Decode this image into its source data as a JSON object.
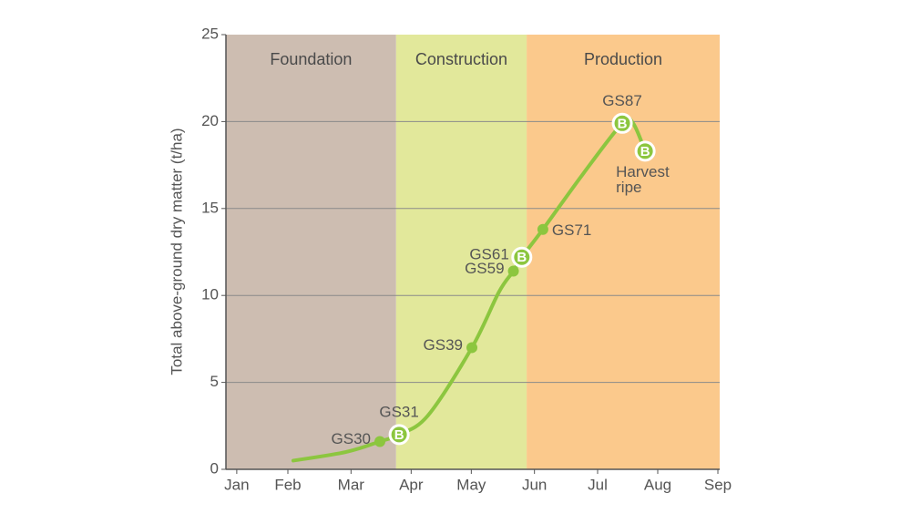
{
  "chart_data": {
    "type": "line",
    "ylabel": "Total above-ground dry matter (t/ha)",
    "ylim": [
      0,
      25
    ],
    "yticks": [
      0,
      5,
      10,
      15,
      20,
      25
    ],
    "grid": true,
    "xlim": [
      -0.18,
      8.03
    ],
    "xticks": [
      {
        "value": 0,
        "label": "Jan"
      },
      {
        "value": 0.85,
        "label": "Feb"
      },
      {
        "value": 1.9,
        "label": "Mar"
      },
      {
        "value": 2.9,
        "label": "Apr"
      },
      {
        "value": 3.9,
        "label": "May"
      },
      {
        "value": 4.95,
        "label": "Jun"
      },
      {
        "value": 6,
        "label": "Jul"
      },
      {
        "value": 7,
        "label": "Aug"
      },
      {
        "value": 8,
        "label": "Sep"
      }
    ],
    "phases": [
      {
        "label": "Foundation",
        "start": -0.18,
        "end": 2.65,
        "color": "#cdbdb1"
      },
      {
        "label": "Construction",
        "start": 2.65,
        "end": 4.82,
        "color": "#e2e89b"
      },
      {
        "label": "Production",
        "start": 4.82,
        "end": 8.03,
        "color": "#fbc98c"
      }
    ],
    "curve": {
      "color": "#8cc63f",
      "x": [
        0.94,
        1.82,
        2.38,
        2.7,
        3.18,
        3.91,
        4.36,
        4.6,
        4.74,
        5.09,
        5.76,
        6.41,
        6.59,
        6.79
      ],
      "y": [
        0.5,
        1.0,
        1.6,
        2.0,
        3.1,
        7.0,
        10.2,
        11.4,
        12.2,
        13.8,
        17.0,
        19.9,
        19.9,
        18.3
      ]
    },
    "stages": {
      "marker_text": "B",
      "labels": [
        "GS30",
        "GS31",
        "GS39",
        "GS59",
        "GS61",
        "GS71",
        "GS87",
        "Harvest ripe"
      ],
      "x": [
        2.38,
        2.7,
        3.91,
        4.6,
        4.74,
        5.09,
        6.41,
        6.79
      ],
      "y": [
        1.6,
        2.0,
        7.0,
        11.4,
        12.2,
        13.8,
        19.9,
        18.3
      ],
      "marker": [
        "dot",
        "B",
        "dot",
        "dot",
        "B",
        "dot",
        "B",
        "B"
      ],
      "label_side": [
        "left",
        "above",
        "left",
        "left",
        "left",
        "right",
        "above",
        "below"
      ]
    }
  }
}
